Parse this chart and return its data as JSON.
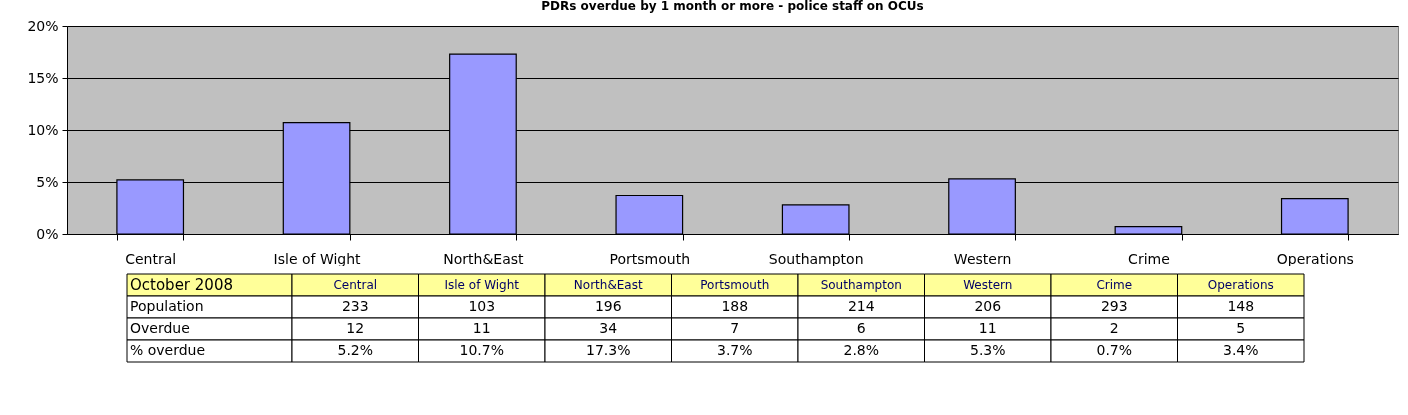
{
  "chart_data": [
    {
      "type": "bar",
      "title": "PDRs overdue by 1 month or more - police staff on OCUs",
      "categories": [
        "Central",
        "Isle of Wight",
        "North&East",
        "Portsmouth",
        "Southampton",
        "Western",
        "Crime",
        "Operations"
      ],
      "values": [
        5.2,
        10.7,
        17.3,
        3.7,
        2.8,
        5.3,
        0.7,
        3.4
      ],
      "color": "#9999ff",
      "ylim": [
        0,
        20
      ],
      "yticks": [
        {
          "value": 0,
          "label": "0%"
        },
        {
          "value": 5,
          "label": "5%"
        },
        {
          "value": 10,
          "label": "10%"
        },
        {
          "value": 15,
          "label": "15%"
        },
        {
          "value": 20,
          "label": "20%"
        }
      ],
      "grid": "y",
      "legend": false
    },
    {
      "type": "other",
      "title": "October 2008",
      "data_labels": true,
      "categories": [
        "Central",
        "Isle of Wight",
        "North&East",
        "Portsmouth",
        "Southampton",
        "Western",
        "Crime",
        "Operations"
      ],
      "series": [
        {
          "name": "Population",
          "values": [
            233,
            103,
            196,
            188,
            214,
            206,
            293,
            148
          ]
        },
        {
          "name": "Overdue",
          "values": [
            12,
            11,
            34,
            7,
            6,
            11,
            2,
            5
          ]
        },
        {
          "name": "% overdue",
          "values": [
            5.2,
            10.7,
            17.3,
            3.7,
            2.8,
            5.3,
            0.7,
            3.4
          ],
          "value_labels": [
            "5.2%",
            "10.7%",
            "17.3%",
            "3.7%",
            "2.8%",
            "5.3%",
            "0.7%",
            "3.4%"
          ]
        }
      ]
    }
  ]
}
